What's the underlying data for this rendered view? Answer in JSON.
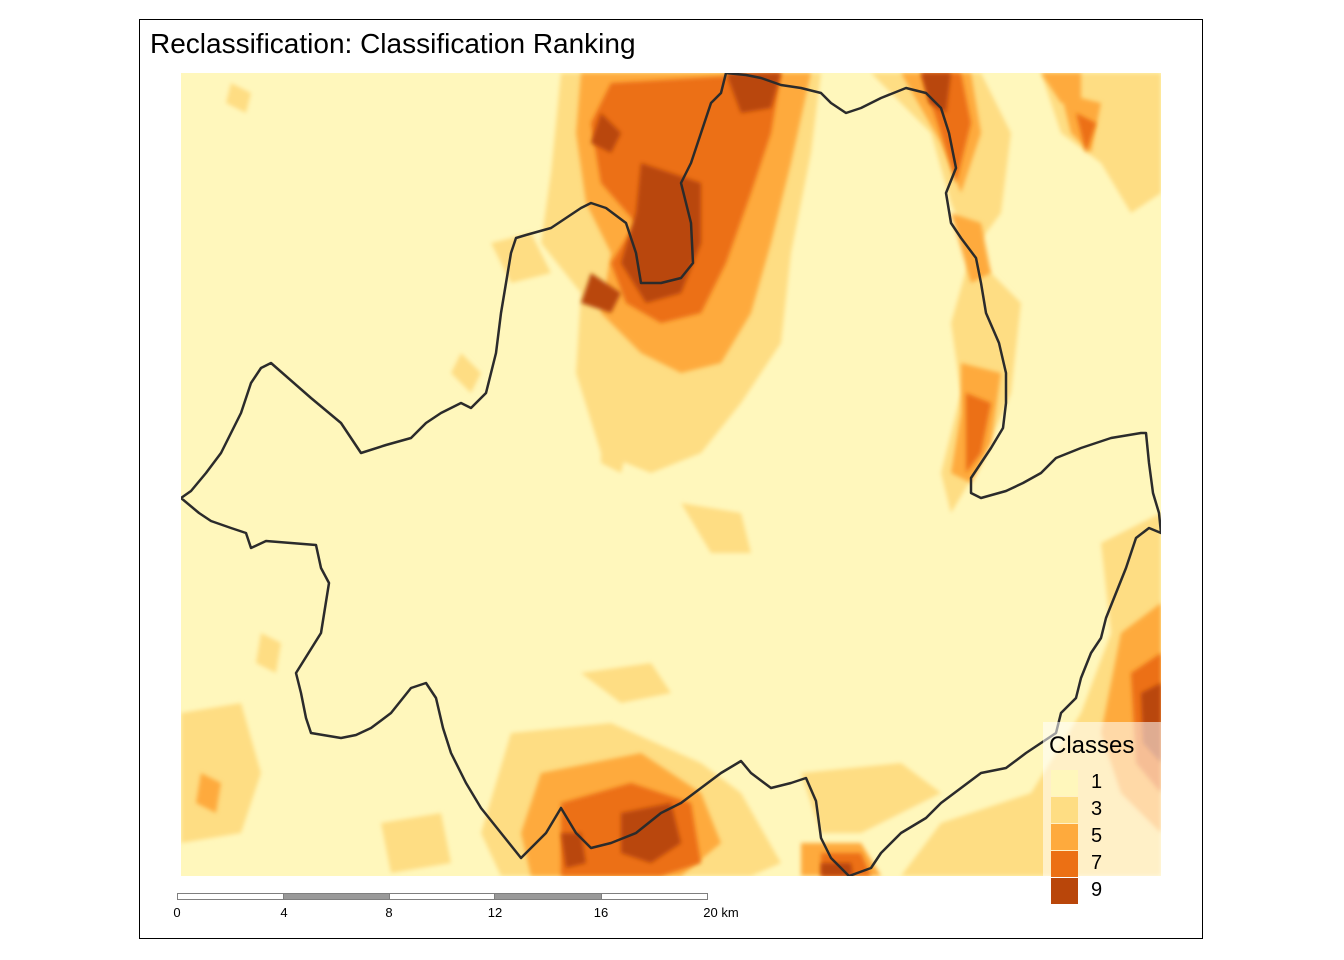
{
  "map": {
    "title": "Reclassification: Classification Ranking"
  },
  "legend": {
    "title": "Classes",
    "items": [
      {
        "label": "1",
        "color": "#FFF7BC"
      },
      {
        "label": "3",
        "color": "#FEDD83"
      },
      {
        "label": "5",
        "color": "#FEAA3D"
      },
      {
        "label": "7",
        "color": "#EC7014"
      },
      {
        "label": "9",
        "color": "#B9460A"
      }
    ]
  },
  "scalebar": {
    "ticks": [
      "0",
      "4",
      "8",
      "12",
      "16",
      "20 km"
    ]
  },
  "colors": {
    "background_class": "#FFF7BC",
    "boundary": "#2b2b2b"
  }
}
